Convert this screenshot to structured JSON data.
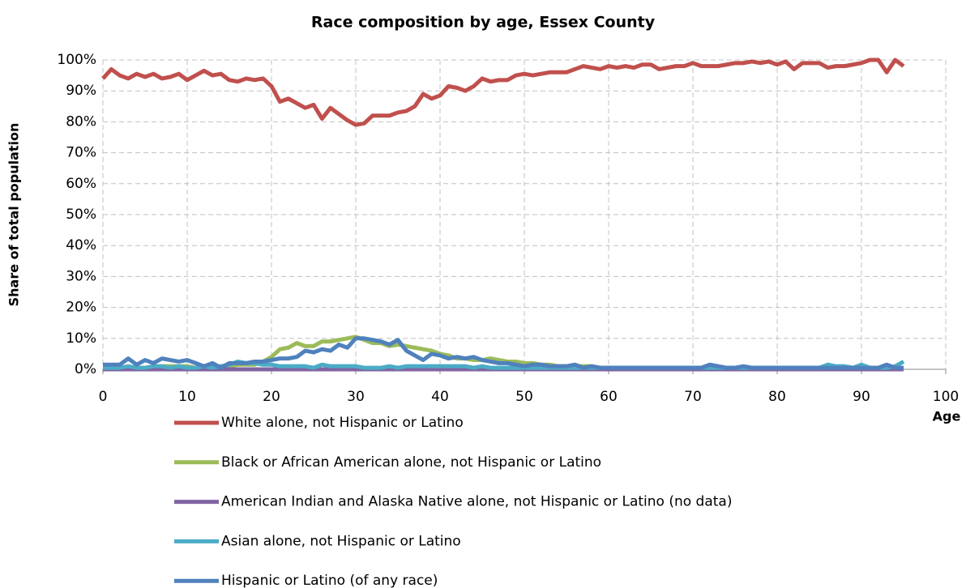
{
  "chart_data": {
    "type": "line",
    "title": "Race composition by age, Essex County",
    "x_label": "Age",
    "y_label": "Share of total population",
    "xlim": [
      0,
      100
    ],
    "xticks": [
      0,
      10,
      20,
      30,
      40,
      50,
      60,
      70,
      80,
      90,
      100
    ],
    "ylim": [
      0,
      100
    ],
    "yticks": [
      {
        "value": 0,
        "label": "0%"
      },
      {
        "value": 10,
        "label": "10%"
      },
      {
        "value": 20,
        "label": "20%"
      },
      {
        "value": 30,
        "label": "30%"
      },
      {
        "value": 40,
        "label": "40%"
      },
      {
        "value": 50,
        "label": "50%"
      },
      {
        "value": 60,
        "label": "60%"
      },
      {
        "value": 70,
        "label": "70%"
      },
      {
        "value": 80,
        "label": "80%"
      },
      {
        "value": 90,
        "label": "90%"
      },
      {
        "value": 100,
        "label": "100%"
      }
    ],
    "grid": true,
    "legend": "bottom",
    "x": [
      0,
      1,
      2,
      3,
      4,
      5,
      6,
      7,
      8,
      9,
      10,
      11,
      12,
      13,
      14,
      15,
      16,
      17,
      18,
      19,
      20,
      21,
      22,
      23,
      24,
      25,
      26,
      27,
      28,
      29,
      30,
      31,
      32,
      33,
      34,
      35,
      36,
      37,
      38,
      39,
      40,
      41,
      42,
      43,
      44,
      45,
      46,
      47,
      48,
      49,
      50,
      51,
      52,
      53,
      54,
      55,
      56,
      57,
      58,
      59,
      60,
      61,
      62,
      63,
      64,
      65,
      66,
      67,
      68,
      69,
      70,
      71,
      72,
      73,
      74,
      75,
      76,
      77,
      78,
      79,
      80,
      81,
      82,
      83,
      84,
      85,
      86,
      87,
      88,
      89,
      90,
      91,
      92,
      93,
      94,
      95
    ],
    "series": [
      {
        "name": "White alone, not Hispanic or Latino",
        "color": "#c0504d",
        "values": [
          94,
          97,
          95,
          94,
          95.5,
          94.5,
          95.5,
          94,
          94.5,
          95.5,
          93.5,
          95,
          96.5,
          95,
          95.5,
          93.5,
          93,
          94,
          93.5,
          94,
          91.5,
          86.5,
          87.5,
          86,
          84.5,
          85.5,
          81,
          84.5,
          82.5,
          80.5,
          79,
          79.5,
          82,
          82,
          82,
          83,
          83.5,
          85,
          89,
          87.5,
          88.5,
          91.5,
          91,
          90,
          91.5,
          94,
          93,
          93.5,
          93.5,
          95,
          95.5,
          95,
          95.5,
          96,
          96,
          96,
          97,
          98,
          97.5,
          97,
          98,
          97.5,
          98,
          97.5,
          98.5,
          98.5,
          97,
          97.5,
          98,
          98,
          99,
          98,
          98,
          98,
          98.5,
          99,
          99,
          99.5,
          99,
          99.5,
          98.5,
          99.5,
          97,
          99,
          99,
          99,
          97.5,
          98,
          98,
          98.5,
          99,
          100,
          100,
          96,
          100,
          98
        ]
      },
      {
        "name": "Black or African American alone, not Hispanic or Latino",
        "color": "#9bbb59",
        "values": [
          0.5,
          0.5,
          0.5,
          0.5,
          0.5,
          0.5,
          0.5,
          1,
          1,
          1,
          1,
          0.5,
          0.5,
          1,
          1,
          1,
          1.5,
          1.5,
          1.5,
          2.5,
          4,
          6.5,
          7,
          8.5,
          7.5,
          7.5,
          9,
          9,
          9.5,
          10,
          10.5,
          9.5,
          8.5,
          8.5,
          7.5,
          8,
          7.5,
          7,
          6.5,
          6,
          5,
          4.5,
          3.5,
          3.5,
          3,
          3,
          3.5,
          3,
          2.5,
          2.5,
          2,
          2,
          1.5,
          1.5,
          1,
          1,
          1,
          1,
          1,
          0.5,
          0.5,
          0.5,
          0.5,
          0.5,
          0.5,
          0.5,
          0.5,
          0.5,
          0.5,
          0.5,
          0.5,
          0.5,
          0.5,
          0.5,
          0.5,
          0.5,
          0.5,
          0.5,
          0.5,
          0.5,
          0.5,
          0.5,
          0.5,
          0.5,
          0.5,
          0.5,
          0.5,
          0.5,
          0.5,
          0.5,
          0.5,
          0.5,
          0.5,
          0.5,
          0.5,
          0.5
        ]
      },
      {
        "name": "American Indian and Alaska Native alone, not Hispanic or Latino (no data)",
        "color": "#8064a2",
        "values": [
          0,
          0,
          0,
          0,
          0,
          0,
          0,
          0,
          0,
          0,
          0,
          0,
          0,
          0,
          0,
          0,
          0,
          0,
          0,
          0,
          0,
          0,
          0,
          0,
          0,
          0,
          0,
          0,
          0,
          0,
          0,
          0,
          0,
          0,
          0,
          0,
          0,
          0,
          0,
          0,
          0,
          0,
          0,
          0,
          0,
          0,
          0,
          0,
          0,
          0,
          0,
          0,
          0,
          0,
          0,
          0,
          0,
          0,
          0,
          0,
          0,
          0,
          0,
          0,
          0,
          0,
          0,
          0,
          0,
          0,
          0,
          0,
          0,
          0,
          0,
          0,
          0,
          0,
          0,
          0,
          0,
          0,
          0,
          0,
          0,
          0,
          0,
          0,
          0,
          0,
          0,
          0,
          0,
          0,
          0,
          0
        ]
      },
      {
        "name": "Asian alone, not Hispanic or Latino",
        "color": "#4bacc6",
        "values": [
          0.5,
          0.5,
          0.5,
          1,
          0.5,
          0.5,
          1,
          1,
          0.5,
          1,
          0.5,
          0.5,
          1,
          0.5,
          1,
          1.5,
          2.5,
          2,
          2,
          1.5,
          1.5,
          1,
          1,
          1,
          1,
          0.5,
          1.5,
          1,
          1,
          1,
          1,
          0.5,
          0.5,
          0.5,
          1,
          0.5,
          1,
          1,
          1,
          1,
          1,
          1,
          1,
          1,
          0.5,
          1,
          0.5,
          0.5,
          0.5,
          0.5,
          0.5,
          0.5,
          0.5,
          0.5,
          0.5,
          0.5,
          0.5,
          0.5,
          0.5,
          0.5,
          0.5,
          0.5,
          0.5,
          0.5,
          0.5,
          0.5,
          0.5,
          0.5,
          0.5,
          0.5,
          0.5,
          0.5,
          0.5,
          0.5,
          0.5,
          0.5,
          0.5,
          0.5,
          0.5,
          0.5,
          0.5,
          0.5,
          0.5,
          0.5,
          0.5,
          0.5,
          1.5,
          1,
          1,
          0.5,
          1.5,
          0.5,
          0.5,
          0.5,
          1,
          2.5
        ]
      },
      {
        "name": "Hispanic or Latino (of any race)",
        "color": "#4f81bd",
        "values": [
          1.5,
          1.5,
          1.5,
          3.5,
          1.5,
          3,
          2,
          3.5,
          3,
          2.5,
          3,
          2,
          1,
          2,
          0.5,
          2,
          2,
          2,
          2.5,
          2.5,
          3,
          3.5,
          3.5,
          4,
          6,
          5.5,
          6.5,
          6,
          8,
          7,
          10,
          10,
          9.5,
          9,
          8,
          9.5,
          6,
          4.5,
          3,
          5,
          4.5,
          3.5,
          4,
          3.5,
          4,
          3,
          2.5,
          2,
          2,
          1.5,
          1,
          1.5,
          1.5,
          1,
          1,
          1,
          1.5,
          0.5,
          1,
          0.5,
          0.5,
          0.5,
          0.5,
          0.5,
          0.5,
          0.5,
          0.5,
          0.5,
          0.5,
          0.5,
          0.5,
          0.5,
          1.5,
          1,
          0.5,
          0.5,
          1,
          0.5,
          0.5,
          0.5,
          0.5,
          0.5,
          0.5,
          0.5,
          0.5,
          0.5,
          0.5,
          0.5,
          0.5,
          0.5,
          0.5,
          0.5,
          0.5,
          1.5,
          0.5,
          0.5
        ]
      }
    ]
  }
}
